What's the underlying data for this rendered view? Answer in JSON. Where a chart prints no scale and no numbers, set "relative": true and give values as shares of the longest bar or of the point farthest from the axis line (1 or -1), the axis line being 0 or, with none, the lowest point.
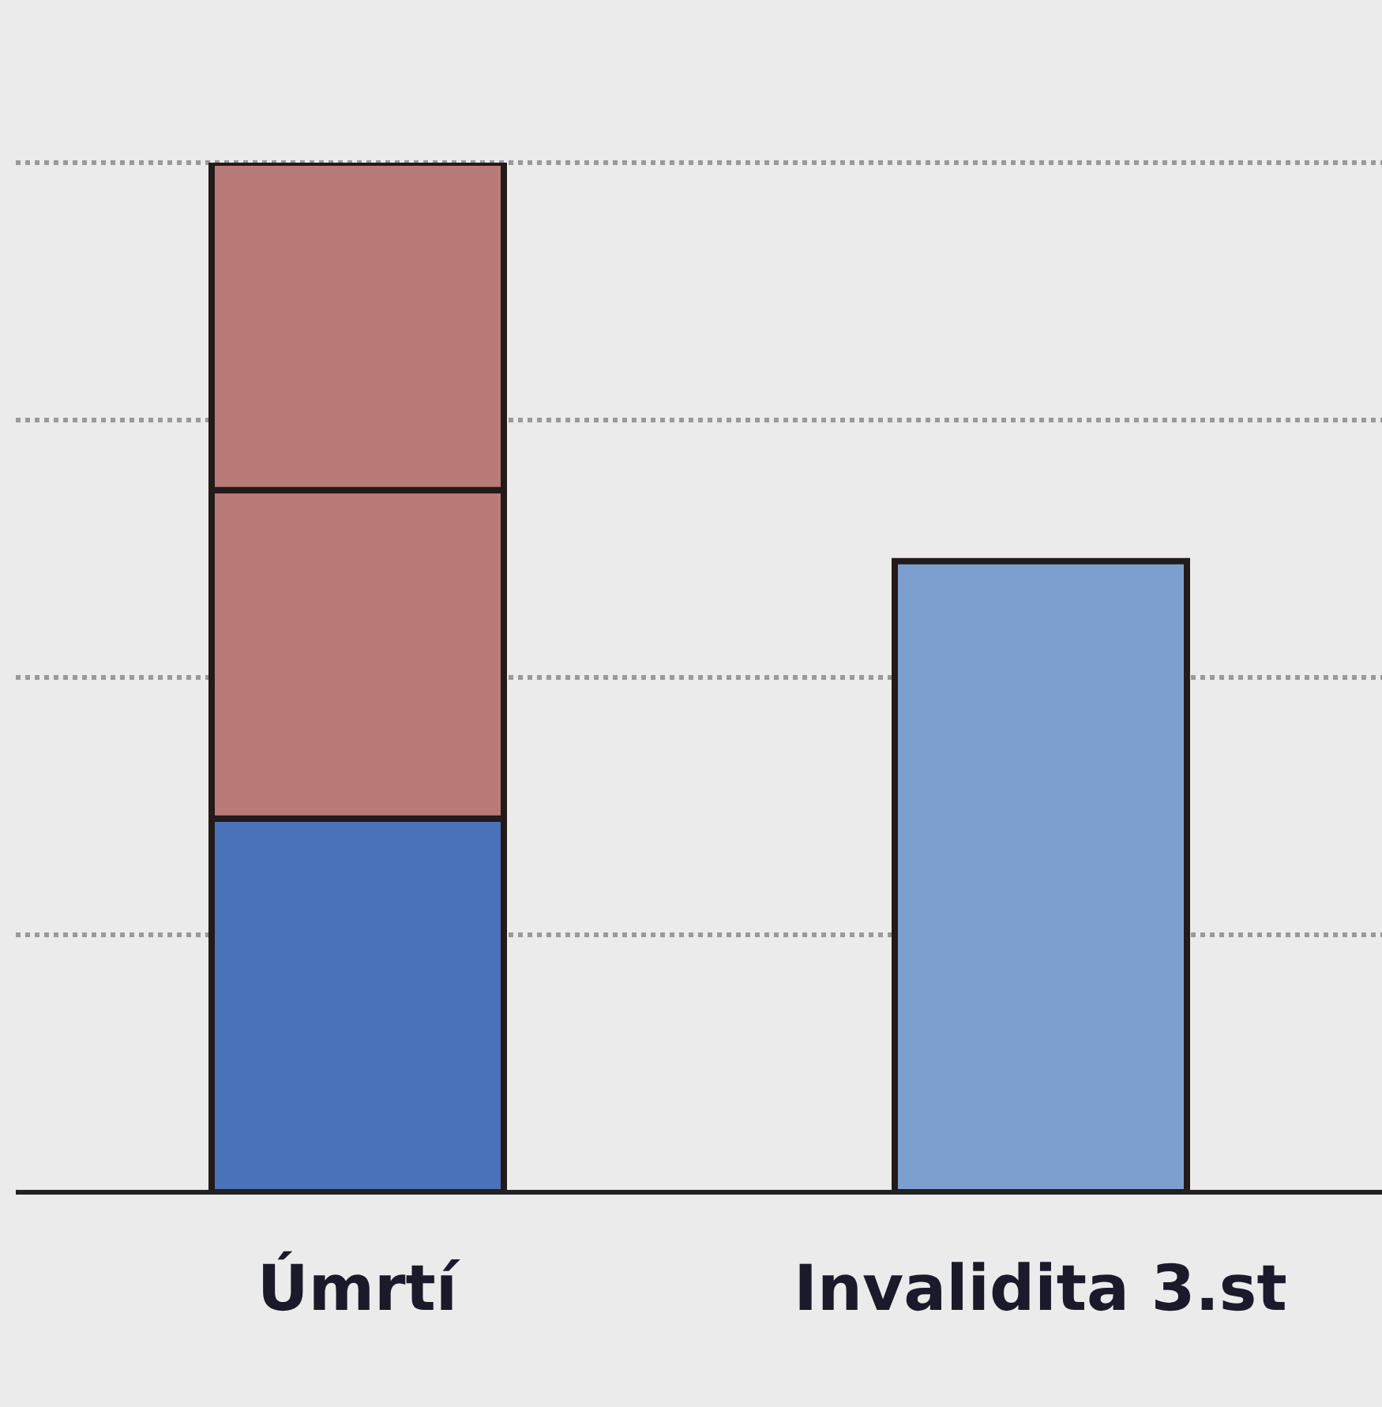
{
  "chart_data": {
    "type": "bar",
    "relative": true,
    "stacked": true,
    "grid": "y",
    "categories": [
      "Úmrtí",
      "Invalidita 3.st"
    ],
    "series": [
      {
        "color": "#4a72b8",
        "values": [
          0.363,
          null
        ]
      },
      {
        "color": "#b97b78",
        "values": [
          0.319,
          null
        ]
      },
      {
        "color": "#b97b78",
        "values": [
          0.318,
          null
        ]
      },
      {
        "color": "#7d9fcf",
        "values": [
          null,
          0.613
        ]
      }
    ]
  }
}
